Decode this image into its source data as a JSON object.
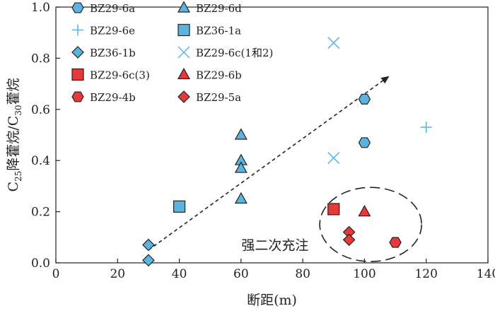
{
  "chart_data": {
    "type": "scatter",
    "title": "",
    "xlabel": "断距(m)",
    "ylabel": "C25降藿烷/C30藿烷",
    "ylabel_parts": [
      "C",
      "25",
      "降藿烷/C",
      "30",
      "藿烷"
    ],
    "xlim": [
      0,
      140
    ],
    "ylim": [
      0.0,
      1.0
    ],
    "x_ticks": [
      "0",
      "20",
      "40",
      "60",
      "80",
      "100",
      "120",
      "140"
    ],
    "y_ticks": [
      "0.0",
      "0.2",
      "0.4",
      "0.6",
      "0.8",
      "1.0"
    ],
    "grid": false,
    "legend_position": "top-left",
    "series": [
      {
        "name": "BZ29-6a",
        "marker": "hexagon",
        "color": "#5BB4DF",
        "points": [
          {
            "x": 100,
            "y": 0.64
          },
          {
            "x": 100,
            "y": 0.47
          }
        ]
      },
      {
        "name": "BZ29-6d",
        "marker": "triangle",
        "color": "#5BB4DF",
        "points": [
          {
            "x": 60,
            "y": 0.5
          },
          {
            "x": 60,
            "y": 0.4
          },
          {
            "x": 60,
            "y": 0.37
          },
          {
            "x": 60,
            "y": 0.25
          }
        ]
      },
      {
        "name": "BZ29-6e",
        "marker": "plus",
        "color": "#5BB4DF",
        "points": [
          {
            "x": 120,
            "y": 0.53
          }
        ]
      },
      {
        "name": "BZ36-1a",
        "marker": "square",
        "color": "#5BB4DF",
        "points": [
          {
            "x": 40,
            "y": 0.22
          }
        ]
      },
      {
        "name": "BZ36-1b",
        "marker": "diamond",
        "color": "#5BB4DF",
        "points": [
          {
            "x": 30,
            "y": 0.07
          },
          {
            "x": 30,
            "y": 0.01
          }
        ]
      },
      {
        "name": "BZ29-6c(1和2)",
        "marker": "x",
        "color": "#5BB4DF",
        "points": [
          {
            "x": 90,
            "y": 0.86
          },
          {
            "x": 90,
            "y": 0.41
          }
        ]
      },
      {
        "name": "BZ29-6c(3)",
        "marker": "square",
        "color": "#E8393A",
        "points": [
          {
            "x": 90,
            "y": 0.21
          }
        ]
      },
      {
        "name": "BZ29-6b",
        "marker": "triangle",
        "color": "#E8393A",
        "points": [
          {
            "x": 100,
            "y": 0.2
          }
        ]
      },
      {
        "name": "BZ29-4b",
        "marker": "hexagon",
        "color": "#E8393A",
        "points": [
          {
            "x": 110,
            "y": 0.08
          }
        ]
      },
      {
        "name": "BZ29-5a",
        "marker": "diamond",
        "color": "#E8393A",
        "points": [
          {
            "x": 95,
            "y": 0.12
          },
          {
            "x": 95,
            "y": 0.09
          }
        ]
      }
    ],
    "trend_arrow": {
      "from": {
        "x": 30,
        "y": 0.05
      },
      "to": {
        "x": 108,
        "y": 0.73
      },
      "style": "dashed"
    },
    "annotations": [
      {
        "text": "强二次充注",
        "x": 71,
        "y": 0.07
      }
    ],
    "highlight_ellipse": {
      "center": {
        "x": 102,
        "y": 0.15
      },
      "rx": 16.5,
      "ry": 0.145,
      "style": "dashed"
    }
  }
}
